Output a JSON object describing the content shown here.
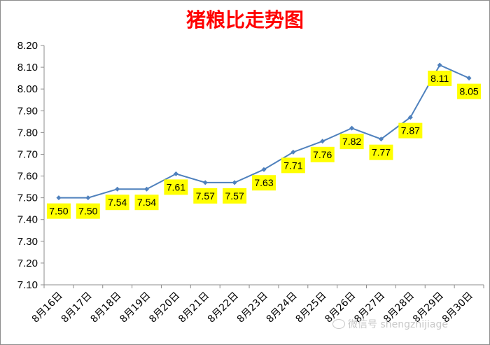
{
  "chart_data": {
    "type": "line",
    "title": "猪粮比走势图",
    "categories": [
      "8月16日",
      "8月17日",
      "8月18日",
      "8月19日",
      "8月20日",
      "8月21日",
      "8月22日",
      "8月23日",
      "8月24日",
      "8月25日",
      "8月26日",
      "8月27日",
      "8月28日",
      "8月29日",
      "8月30日"
    ],
    "values": [
      7.5,
      7.5,
      7.54,
      7.54,
      7.61,
      7.57,
      7.57,
      7.63,
      7.71,
      7.76,
      7.82,
      7.77,
      7.87,
      8.11,
      8.05
    ],
    "data_labels": [
      "7.50",
      "7.50",
      "7.54",
      "7.54",
      "7.61",
      "7.57",
      "7.57",
      "7.63",
      "7.71",
      "7.76",
      "7.82",
      "7.77",
      "7.87",
      "8.11",
      "8.05"
    ],
    "yticks": [
      "7.10",
      "7.20",
      "7.30",
      "7.40",
      "7.50",
      "7.60",
      "7.70",
      "7.80",
      "7.90",
      "8.00",
      "8.10",
      "8.20"
    ],
    "ylim": [
      7.1,
      8.2
    ],
    "xlabel": "",
    "ylabel": "",
    "grid": false,
    "legend": "none",
    "colors": {
      "line": "#4f81bd",
      "label_bg": "#ffff00",
      "title": "#ff0000"
    }
  },
  "watermark": "微信号 shengzhijiage"
}
